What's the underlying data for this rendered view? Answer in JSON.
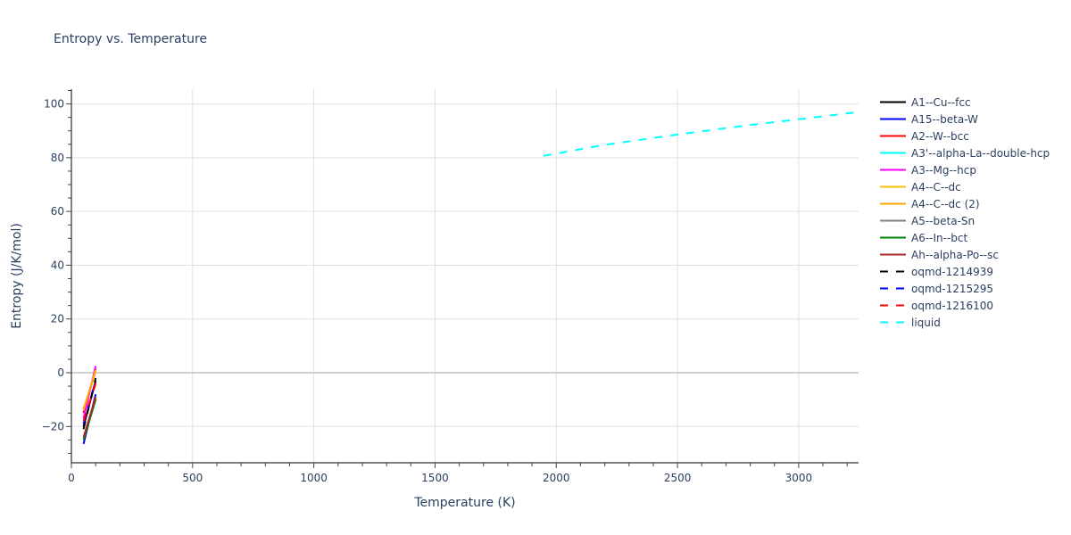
{
  "chart_data": {
    "type": "line",
    "title": "Entropy vs. Temperature",
    "xlabel": "Temperature (K)",
    "ylabel": "Entropy (J/K/mol)",
    "xlim": [
      0,
      3247
    ],
    "ylim": [
      -33.5,
      105.5
    ],
    "x_ticks": [
      0,
      500,
      1000,
      1500,
      2000,
      2500,
      3000
    ],
    "y_ticks": [
      -20,
      0,
      20,
      40,
      60,
      80,
      100
    ],
    "grid": true,
    "legend_position": "right",
    "series": [
      {
        "name": "A1--Cu--fcc",
        "color": "#000000",
        "dash": "solid",
        "x": [
          50,
          100
        ],
        "y": [
          -20,
          -3
        ]
      },
      {
        "name": "A15--beta-W",
        "color": "#0000ff",
        "dash": "solid",
        "x": [
          50,
          100
        ],
        "y": [
          -26.5,
          -8
        ]
      },
      {
        "name": "A2--W--bcc",
        "color": "#ff0000",
        "dash": "solid",
        "x": [
          50,
          100
        ],
        "y": [
          -15,
          1.5
        ]
      },
      {
        "name": "A3'--alpha-La--double-hcp",
        "color": "#00ffff",
        "dash": "solid",
        "x": [],
        "y": []
      },
      {
        "name": "A3--Mg--hcp",
        "color": "#ff00ff",
        "dash": "solid",
        "x": [
          50,
          100
        ],
        "y": [
          -17,
          2.5
        ]
      },
      {
        "name": "A4--C--dc",
        "color": "#ffc000",
        "dash": "solid",
        "x": [
          50,
          100
        ],
        "y": [
          -14,
          1
        ]
      },
      {
        "name": "A4--C--dc (2)",
        "color": "#ffa500",
        "dash": "solid",
        "x": [
          50,
          100
        ],
        "y": [
          -13.5,
          0.5
        ]
      },
      {
        "name": "A5--beta-Sn",
        "color": "#808080",
        "dash": "solid",
        "x": [
          50,
          100
        ],
        "y": [
          -25,
          -9.5
        ]
      },
      {
        "name": "A6--In--bct",
        "color": "#008000",
        "dash": "solid",
        "x": [
          50,
          100
        ],
        "y": [
          -25,
          -10
        ]
      },
      {
        "name": "Ah--alpha-Po--sc",
        "color": "#a52a2a",
        "dash": "solid",
        "x": [
          50,
          100
        ],
        "y": [
          -24,
          -9
        ]
      },
      {
        "name": "oqmd-1214939",
        "color": "#000000",
        "dash": "dash",
        "x": [
          50,
          100
        ],
        "y": [
          -21,
          -2
        ]
      },
      {
        "name": "oqmd-1215295",
        "color": "#0000ff",
        "dash": "dash",
        "x": [
          50,
          100
        ],
        "y": [
          -19,
          -3
        ]
      },
      {
        "name": "oqmd-1216100",
        "color": "#ff0000",
        "dash": "dash",
        "x": [
          50,
          100
        ],
        "y": [
          -18,
          -4
        ]
      },
      {
        "name": "liquid",
        "color": "#00ffff",
        "dash": "dash",
        "x": [
          1947,
          2200,
          2500,
          2800,
          3000,
          3247
        ],
        "y": [
          80.7,
          84.8,
          88.6,
          92.2,
          94.3,
          97.0
        ]
      }
    ]
  }
}
